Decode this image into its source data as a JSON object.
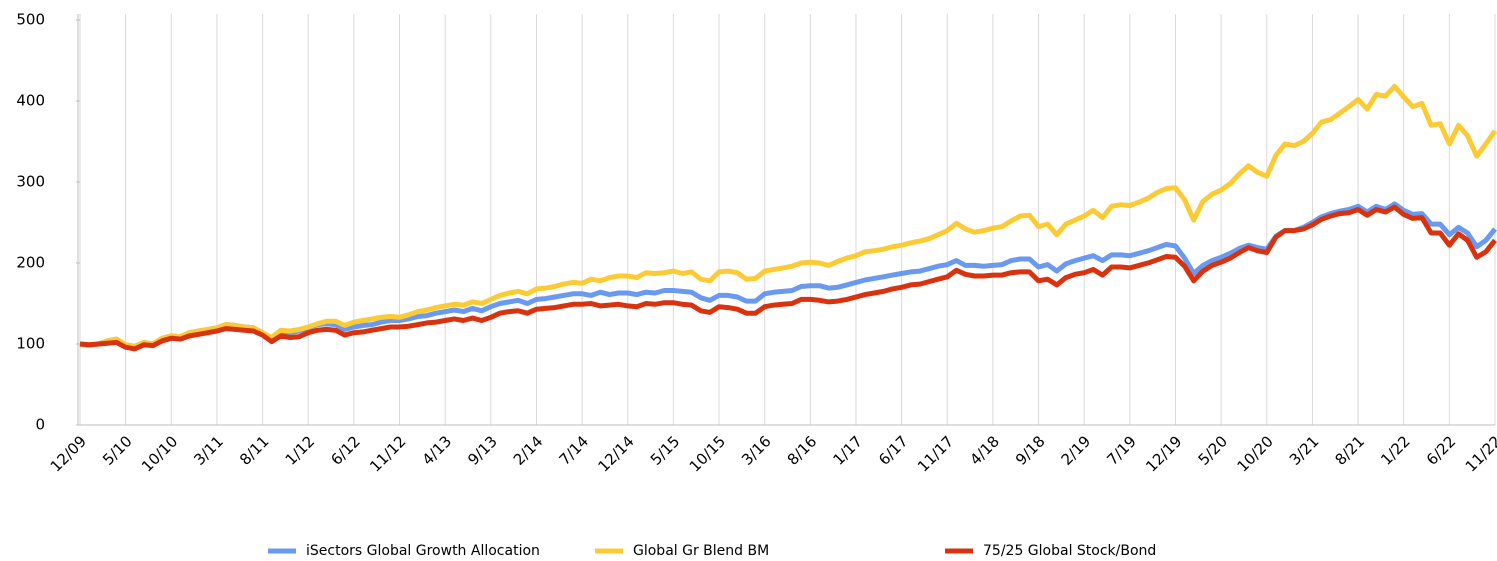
{
  "chart_data": {
    "type": "line",
    "categories": [
      "12/09",
      null,
      null,
      null,
      null,
      "5/10",
      null,
      null,
      null,
      null,
      "10/10",
      null,
      null,
      null,
      null,
      "3/11",
      null,
      null,
      null,
      null,
      "8/11",
      null,
      null,
      null,
      null,
      "1/12",
      null,
      null,
      null,
      null,
      "6/12",
      null,
      null,
      null,
      null,
      "11/12",
      null,
      null,
      null,
      null,
      "4/13",
      null,
      null,
      null,
      null,
      "9/13",
      null,
      null,
      null,
      null,
      "2/14",
      null,
      null,
      null,
      null,
      "7/14",
      null,
      null,
      null,
      null,
      "12/14",
      null,
      null,
      null,
      null,
      "5/15",
      null,
      null,
      null,
      null,
      "10/15",
      null,
      null,
      null,
      null,
      "3/16",
      null,
      null,
      null,
      null,
      "8/16",
      null,
      null,
      null,
      null,
      "1/17",
      null,
      null,
      null,
      null,
      "6/17",
      null,
      null,
      null,
      null,
      "11/17",
      null,
      null,
      null,
      null,
      "4/18",
      null,
      null,
      null,
      null,
      "9/18",
      null,
      null,
      null,
      null,
      "2/19",
      null,
      null,
      null,
      null,
      "7/19",
      null,
      null,
      null,
      null,
      "12/19",
      null,
      null,
      null,
      null,
      "5/20",
      null,
      null,
      null,
      null,
      "10/20",
      null,
      null,
      null,
      null,
      "3/21",
      null,
      null,
      null,
      null,
      "8/21",
      null,
      null,
      null,
      null,
      "1/22",
      null,
      null,
      null,
      null,
      "6/22",
      null,
      null,
      null,
      null,
      "11/22"
    ],
    "series": [
      {
        "name": "iSectors Global Growth Allocation",
        "color": "#6a9af0",
        "values": [
          100,
          98,
          100,
          104,
          106,
          99,
          97,
          102,
          100,
          107,
          110,
          109,
          114,
          116,
          118,
          120,
          124,
          123,
          121,
          120,
          114,
          107,
          115,
          114,
          116,
          120,
          124,
          125,
          124,
          118,
          121,
          123,
          124,
          127,
          129,
          129,
          131,
          134,
          135,
          138,
          140,
          142,
          140,
          144,
          141,
          146,
          150,
          152,
          154,
          150,
          155,
          156,
          158,
          160,
          162,
          162,
          160,
          164,
          161,
          163,
          163,
          161,
          164,
          163,
          166,
          166,
          165,
          164,
          157,
          154,
          160,
          160,
          158,
          153,
          153,
          162,
          164,
          165,
          166,
          171,
          172,
          172,
          169,
          170,
          173,
          176,
          179,
          181,
          183,
          185,
          187,
          189,
          190,
          193,
          196,
          198,
          203,
          197,
          197,
          196,
          197,
          198,
          203,
          205,
          205,
          195,
          198,
          190,
          199,
          203,
          206,
          209,
          203,
          210,
          210,
          209,
          212,
          215,
          219,
          223,
          221,
          206,
          187,
          197,
          203,
          207,
          212,
          218,
          222,
          219,
          217,
          233,
          240,
          240,
          244,
          250,
          257,
          261,
          264,
          266,
          270,
          263,
          270,
          266,
          273,
          265,
          260,
          261,
          248,
          248,
          235,
          244,
          237,
          220,
          228,
          242
        ]
      },
      {
        "name": "Global Gr Blend BM",
        "color": "#fbcb35",
        "values": [
          100,
          98,
          100,
          104,
          106,
          99,
          97,
          102,
          100,
          107,
          110,
          109,
          114,
          116,
          118,
          120,
          124,
          123,
          121,
          120,
          114,
          108,
          117,
          116,
          118,
          121,
          125,
          128,
          128,
          123,
          127,
          129,
          131,
          133,
          134,
          133,
          136,
          140,
          142,
          145,
          147,
          149,
          148,
          152,
          150,
          155,
          160,
          163,
          165,
          162,
          168,
          169,
          171,
          174,
          176,
          175,
          180,
          178,
          182,
          184,
          184,
          182,
          188,
          187,
          188,
          190,
          187,
          189,
          180,
          178,
          189,
          190,
          188,
          180,
          181,
          190,
          192,
          194,
          196,
          200,
          201,
          200,
          197,
          202,
          206,
          209,
          214,
          215,
          217,
          220,
          222,
          225,
          227,
          230,
          235,
          240,
          249,
          242,
          238,
          240,
          243,
          245,
          252,
          258,
          259,
          245,
          248,
          235,
          248,
          253,
          258,
          265,
          256,
          270,
          272,
          271,
          275,
          280,
          287,
          292,
          293,
          278,
          253,
          276,
          285,
          290,
          298,
          310,
          320,
          312,
          307,
          333,
          347,
          345,
          350,
          360,
          374,
          377,
          385,
          393,
          402,
          390,
          408,
          406,
          418,
          405,
          393,
          397,
          370,
          372,
          347,
          370,
          357,
          332,
          347,
          363
        ]
      },
      {
        "name": "75/25 Global Stock/Bond",
        "color": "#d8330e",
        "values": [
          100,
          99,
          100,
          101,
          102,
          96,
          94,
          99,
          98,
          104,
          107,
          106,
          110,
          112,
          114,
          116,
          119,
          118,
          117,
          116,
          111,
          103,
          110,
          108,
          109,
          114,
          117,
          118,
          117,
          111,
          114,
          115,
          117,
          119,
          121,
          121,
          122,
          124,
          126,
          127,
          129,
          131,
          129,
          132,
          129,
          133,
          138,
          140,
          141,
          138,
          143,
          144,
          145,
          147,
          149,
          149,
          150,
          147,
          148,
          149,
          147,
          146,
          150,
          149,
          151,
          151,
          149,
          148,
          141,
          139,
          146,
          145,
          143,
          138,
          138,
          146,
          148,
          149,
          150,
          155,
          155,
          154,
          152,
          153,
          155,
          158,
          161,
          163,
          165,
          168,
          170,
          173,
          174,
          177,
          180,
          183,
          191,
          186,
          184,
          184,
          185,
          185,
          188,
          189,
          189,
          178,
          180,
          173,
          182,
          186,
          188,
          192,
          185,
          195,
          195,
          194,
          197,
          200,
          204,
          208,
          207,
          196,
          178,
          190,
          197,
          201,
          206,
          213,
          219,
          215,
          213,
          232,
          240,
          240,
          242,
          247,
          254,
          258,
          261,
          262,
          266,
          259,
          266,
          263,
          269,
          260,
          255,
          256,
          237,
          237,
          222,
          236,
          228,
          207,
          214,
          228
        ]
      }
    ],
    "ylim": [
      0,
      500
    ],
    "yticks": [
      0,
      100,
      200,
      300,
      400,
      500
    ],
    "grid": true,
    "legend": "bottom"
  }
}
